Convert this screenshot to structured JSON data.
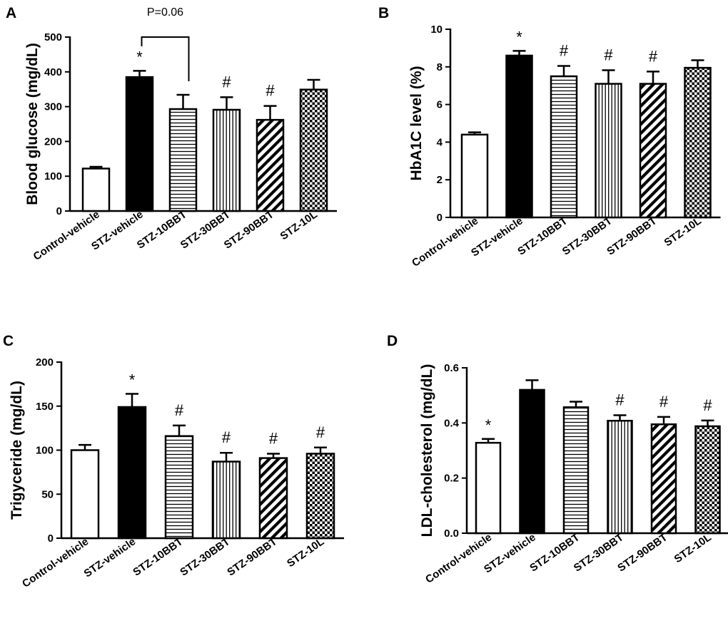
{
  "chart_data": [
    {
      "type": "bar",
      "panel": "A",
      "ylabel": "Blood glucose (mg/dL)",
      "ylim": [
        0,
        500
      ],
      "yticks": [
        0,
        100,
        200,
        300,
        400,
        500
      ],
      "categories": [
        "Control-vehicle",
        "STZ-vehicle",
        "STZ-10BBT",
        "STZ-30BBT",
        "STZ-90BBT",
        "STZ-10L"
      ],
      "values": [
        122,
        385,
        293,
        291,
        262,
        349
      ],
      "errors": [
        5,
        18,
        41,
        36,
        40,
        28
      ],
      "patterns": [
        "white",
        "black",
        "hlines",
        "vlines",
        "diag",
        "check"
      ],
      "markers": [
        "",
        "*",
        "",
        "#",
        "#",
        ""
      ],
      "bracket": {
        "from": 1,
        "to": 2,
        "label": "P=0.06"
      }
    },
    {
      "type": "bar",
      "panel": "B",
      "ylabel": "HbA1C level (%)",
      "ylim": [
        0,
        10
      ],
      "yticks": [
        0,
        2,
        4,
        6,
        8,
        10
      ],
      "categories": [
        "Control-vehicle",
        "STZ-vehicle",
        "STZ-10BBT",
        "STZ-30BBT",
        "STZ-90BBT",
        "STZ-10L"
      ],
      "values": [
        4.4,
        8.6,
        7.5,
        7.1,
        7.1,
        7.95
      ],
      "errors": [
        0.12,
        0.25,
        0.55,
        0.72,
        0.65,
        0.4
      ],
      "patterns": [
        "white",
        "black",
        "hlines",
        "vlines",
        "diag",
        "check"
      ],
      "markers": [
        "",
        "*",
        "#",
        "#",
        "#",
        ""
      ]
    },
    {
      "type": "bar",
      "panel": "C",
      "ylabel": "Trigyceride (mg/dL)",
      "ylim": [
        0,
        200
      ],
      "yticks": [
        0,
        50,
        100,
        150,
        200
      ],
      "categories": [
        "Control-vehicle",
        "STZ-vehicle",
        "STZ-10BBT",
        "STZ-30BBT",
        "STZ-90BBT",
        "STZ-10L"
      ],
      "values": [
        100,
        149,
        116,
        87,
        91,
        96
      ],
      "errors": [
        6,
        15,
        12,
        10,
        5,
        7
      ],
      "patterns": [
        "white",
        "black",
        "hlines",
        "vlines",
        "diag",
        "check"
      ],
      "markers": [
        "",
        "*",
        "#",
        "#",
        "#",
        "#"
      ]
    },
    {
      "type": "bar",
      "panel": "D",
      "ylabel": "LDL-cholesterol (mg/dL)",
      "ylim": [
        0,
        0.6
      ],
      "yticks": [
        0.0,
        0.2,
        0.4,
        0.6
      ],
      "ytick_labels": [
        "0.0",
        "0.2",
        "0.4",
        "0.6"
      ],
      "categories": [
        "Control-vehicle",
        "STZ-vehicle",
        "STZ-10BBT",
        "STZ-30BBT",
        "STZ-90BBT",
        "STZ-10L"
      ],
      "values": [
        0.328,
        0.52,
        0.457,
        0.408,
        0.395,
        0.388
      ],
      "errors": [
        0.014,
        0.035,
        0.02,
        0.02,
        0.027,
        0.021
      ],
      "patterns": [
        "white",
        "black",
        "hlines",
        "vlines",
        "diag",
        "check"
      ],
      "markers": [
        "*",
        "",
        "",
        "#",
        "#",
        "#"
      ]
    }
  ]
}
